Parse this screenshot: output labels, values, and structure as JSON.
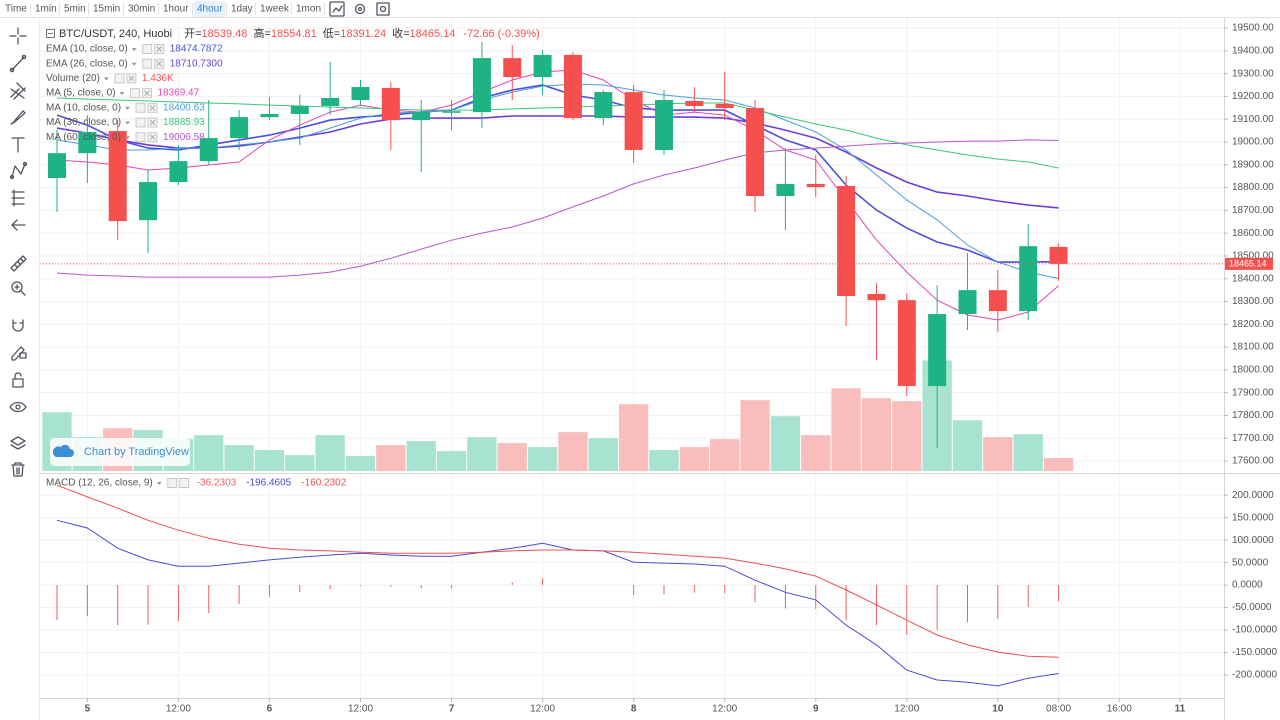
{
  "toolbar": {
    "label": "Time",
    "intervals": [
      "1min",
      "5min",
      "15min",
      "30min",
      "1hour",
      "4hour",
      "1day",
      "1week",
      "1mon"
    ],
    "active_index": 5
  },
  "chart_data": [
    {
      "type": "candlestick",
      "title": "BTC/USDT, 240, Huobi",
      "ohlc_labels": [
        "开=",
        "高=",
        "低=",
        "收="
      ],
      "change_label": "-72.66 (-0.39%)",
      "watermark": "Chart by TradingView",
      "categories": [
        null,
        "5",
        null,
        null,
        "12:00",
        null,
        null,
        "6",
        null,
        null,
        "12:00",
        null,
        null,
        "7",
        null,
        null,
        "12:00",
        null,
        null,
        "8",
        null,
        null,
        "12:00",
        null,
        null,
        "9",
        null,
        null,
        "12:00",
        null,
        null,
        "10",
        null,
        "08:00",
        null,
        "16:00",
        null,
        "11"
      ],
      "open": [
        18842,
        18951,
        19048,
        18657,
        18824,
        18916,
        19017,
        19109,
        19123,
        19158,
        19184,
        19237,
        19096,
        19128,
        19131,
        19368,
        19285,
        19382,
        19105,
        19219,
        18965,
        19180,
        19167,
        19149,
        18763,
        18816,
        18807,
        18333,
        18306,
        17929,
        18245,
        18350,
        18258,
        18539.48,
        null,
        null,
        null,
        null
      ],
      "high": [
        19052,
        19118,
        19096,
        18877,
        18987,
        19184,
        19140,
        19197,
        19206,
        19351,
        19272,
        19263,
        19184,
        19184,
        19439,
        19425,
        19403,
        19395,
        19228,
        19250,
        19228,
        19241,
        19307,
        19184,
        18973,
        18943,
        18851,
        18381,
        18337,
        18372,
        18513,
        18438,
        18640,
        18554.81,
        null,
        null,
        null,
        null
      ],
      "low": [
        18693,
        18820,
        18570,
        18513,
        18811,
        18899,
        18965,
        19096,
        18987,
        19118,
        19162,
        18965,
        18868,
        19052,
        19061,
        19184,
        19206,
        19096,
        19074,
        18908,
        18943,
        19131,
        19096,
        18693,
        18614,
        18758,
        18192,
        18043,
        17885,
        17657,
        18175,
        18166,
        18219,
        18391.24,
        null,
        null,
        null,
        null
      ],
      "close": [
        18951,
        19044,
        18653,
        18824,
        18916,
        19017,
        19109,
        19123,
        19158,
        19193,
        19241,
        19096,
        19131,
        19135,
        19368,
        19285,
        19382,
        19105,
        19219,
        18965,
        19184,
        19158,
        19149,
        18763,
        18816,
        18802,
        18324,
        18306,
        17929,
        18245,
        18350,
        18258,
        18543,
        18465.14,
        null,
        null,
        null,
        null
      ],
      "up_color": "#1db385",
      "down_color": "#f5504e",
      "ylim": [
        17552,
        19544
      ],
      "yticks": [
        {
          "value": 19500,
          "label": "19500.00"
        },
        {
          "value": 19400,
          "label": "19400.00"
        },
        {
          "value": 19300,
          "label": "19300.00"
        },
        {
          "value": 19200,
          "label": "19200.00"
        },
        {
          "value": 19100,
          "label": "19100.00"
        },
        {
          "value": 19000,
          "label": "19000.00"
        },
        {
          "value": 18900,
          "label": "18900.00"
        },
        {
          "value": 18800,
          "label": "18800.00"
        },
        {
          "value": 18700,
          "label": "18700.00"
        },
        {
          "value": 18600,
          "label": "18600.00"
        },
        {
          "value": 18500,
          "label": "18500.00"
        },
        {
          "value": 18400,
          "label": "18400.00"
        },
        {
          "value": 18300,
          "label": "18300.00"
        },
        {
          "value": 18200,
          "label": "18200.00"
        },
        {
          "value": 18100,
          "label": "18100.00"
        },
        {
          "value": 18000,
          "label": "18000.00"
        },
        {
          "value": 17900,
          "label": "17900.00"
        },
        {
          "value": 17800,
          "label": "17800.00"
        },
        {
          "value": 17700,
          "label": "17700.00"
        },
        {
          "value": 17600,
          "label": "17600.00"
        }
      ],
      "grid": true,
      "last_price_line": true,
      "series": [
        {
          "name": "EMA (10, close, 0)",
          "color": "#4b4fdc",
          "line_width": 1.6,
          "legend_value": "18474.7872",
          "values": [
            19118,
            19074,
            19009,
            18973,
            18965,
            18987,
            19009,
            19030,
            19061,
            19096,
            19109,
            19118,
            19131,
            19140,
            19193,
            19228,
            19250,
            19206,
            19184,
            19149,
            19140,
            19140,
            19140,
            19074,
            19009,
            18965,
            18811,
            18701,
            18622,
            18561,
            18526,
            18473,
            18473,
            18474.7872,
            null,
            null,
            null,
            null
          ]
        },
        {
          "name": "EMA (26, close, 0)",
          "color": "#6b3fd9",
          "line_width": 1.6,
          "legend_value": "18710.7300",
          "values": [
            19061,
            19039,
            19009,
            18987,
            18973,
            18973,
            18982,
            19000,
            19022,
            19044,
            19079,
            19101,
            19105,
            19105,
            19105,
            19114,
            19114,
            19114,
            19114,
            19109,
            19109,
            19109,
            19105,
            19083,
            19052,
            19017,
            18956,
            18886,
            18824,
            18780,
            18763,
            18741,
            18723,
            18710.73,
            null,
            null,
            null,
            null
          ]
        },
        {
          "name": "MA (5, close, 0)",
          "color": "#e046b4",
          "line_width": 1,
          "legend_value": "18369.47",
          "values": [
            18921,
            18912,
            18899,
            18877,
            18886,
            18899,
            18912,
            19009,
            19074,
            19131,
            19162,
            19140,
            19131,
            19162,
            19219,
            19272,
            19307,
            19316,
            19272,
            19184,
            19118,
            19131,
            19118,
            19052,
            18965,
            18921,
            18745,
            18570,
            18429,
            18306,
            18241,
            18219,
            18254,
            18369.47,
            null,
            null,
            null,
            null
          ]
        },
        {
          "name": "MA (10, close, 0)",
          "color": "#4a9ee0",
          "line_width": 1,
          "legend_value": "18400.63",
          "values": [
            19009,
            18987,
            18965,
            18965,
            18973,
            18973,
            18987,
            19000,
            19017,
            19061,
            19105,
            19127,
            19131,
            19140,
            19184,
            19219,
            19245,
            19254,
            19250,
            19228,
            19206,
            19193,
            19184,
            19149,
            19096,
            19044,
            18965,
            18855,
            18745,
            18658,
            18548,
            18473,
            18429,
            18400.63,
            null,
            null,
            null,
            null
          ]
        },
        {
          "name": "MA (30, close, 0)",
          "color": "#3cc77a",
          "line_width": 1,
          "legend_value": "18885.93",
          "values": [
            19193,
            19188,
            19184,
            19180,
            19175,
            19171,
            19167,
            19162,
            19158,
            19153,
            19149,
            19145,
            19140,
            19140,
            19140,
            19145,
            19149,
            19153,
            19158,
            19162,
            19167,
            19171,
            19171,
            19140,
            19109,
            19079,
            19052,
            19017,
            18987,
            18965,
            18943,
            18925,
            18912,
            18885.93,
            null,
            null,
            null,
            null
          ]
        },
        {
          "name": "MA (60, close, 0)",
          "color": "#b05ad0",
          "line_width": 1,
          "legend_value": "19006.58",
          "values": [
            18425,
            18416,
            18412,
            18407,
            18407,
            18407,
            18407,
            18407,
            18416,
            18429,
            18455,
            18490,
            18530,
            18569,
            18600,
            18627,
            18666,
            18715,
            18763,
            18816,
            18855,
            18886,
            18921,
            18952,
            18965,
            18973,
            18982,
            18991,
            18995,
            19000,
            19004,
            19004,
            19009,
            19006.58,
            null,
            null,
            null,
            null
          ]
        }
      ],
      "volume": {
        "name": "Volume (20)",
        "legend_value": "1.436K",
        "up_color": "#a8e3d1",
        "down_color": "#f9bdbc",
        "ylim": [
          0,
          50000
        ],
        "values": [
          6490,
          3740,
          4730,
          4510,
          3520,
          3960,
          2860,
          2310,
          1760,
          3960,
          1650,
          2860,
          3300,
          2200,
          3740,
          3080,
          2640,
          4290,
          3630,
          7370,
          2310,
          2640,
          3520,
          7810,
          6050,
          3960,
          9130,
          8030,
          7700,
          12210,
          5610,
          3740,
          4070,
          1436,
          null,
          null,
          null,
          null
        ]
      }
    },
    {
      "type": "macd",
      "title": "MACD (12, 26, close, 9)",
      "ylim": [
        -251,
        247
      ],
      "yticks": [
        {
          "value": 200,
          "label": "200.0000"
        },
        {
          "value": 150,
          "label": "150.0000"
        },
        {
          "value": 100,
          "label": "100.0000"
        },
        {
          "value": 50,
          "label": "50.0000"
        },
        {
          "value": 0,
          "label": "0.0000"
        },
        {
          "value": -50,
          "label": "-50.0000"
        },
        {
          "value": -100,
          "label": "-100.0000"
        },
        {
          "value": -150,
          "label": "-150.0000"
        },
        {
          "value": -200,
          "label": "-200.0000"
        }
      ],
      "series": [
        {
          "style": "histogram",
          "color": "#ec5f63",
          "values": [
            -78,
            -69,
            -89,
            -88,
            -80,
            -62,
            -42,
            -26,
            -16,
            -9,
            -2,
            -4,
            -7,
            -7,
            0,
            6,
            15,
            0,
            0,
            -22,
            -20,
            -17,
            -18,
            -38,
            -52,
            -53,
            -78,
            -89,
            -111,
            -100,
            -83,
            -75,
            -49,
            -36.2303
          ]
        },
        {
          "style": "line",
          "color": "#4b4bd8",
          "values": [
            144,
            127,
            82,
            56,
            42,
            42,
            49,
            56,
            62,
            67,
            71,
            67,
            64,
            64,
            73,
            82,
            93,
            78,
            76,
            51,
            49,
            47,
            42,
            11,
            -16,
            -33,
            -89,
            -133,
            -189,
            -211,
            -216,
            -224,
            -207,
            -196.4605
          ]
        },
        {
          "style": "line",
          "color": "#f05050",
          "values": [
            222,
            196,
            171,
            144,
            122,
            104,
            91,
            82,
            78,
            76,
            73,
            71,
            71,
            71,
            73,
            76,
            78,
            78,
            76,
            73,
            69,
            64,
            60,
            49,
            36,
            20,
            -11,
            -44,
            -78,
            -111,
            -133,
            -149,
            -158,
            -160.2302
          ]
        }
      ]
    }
  ]
}
